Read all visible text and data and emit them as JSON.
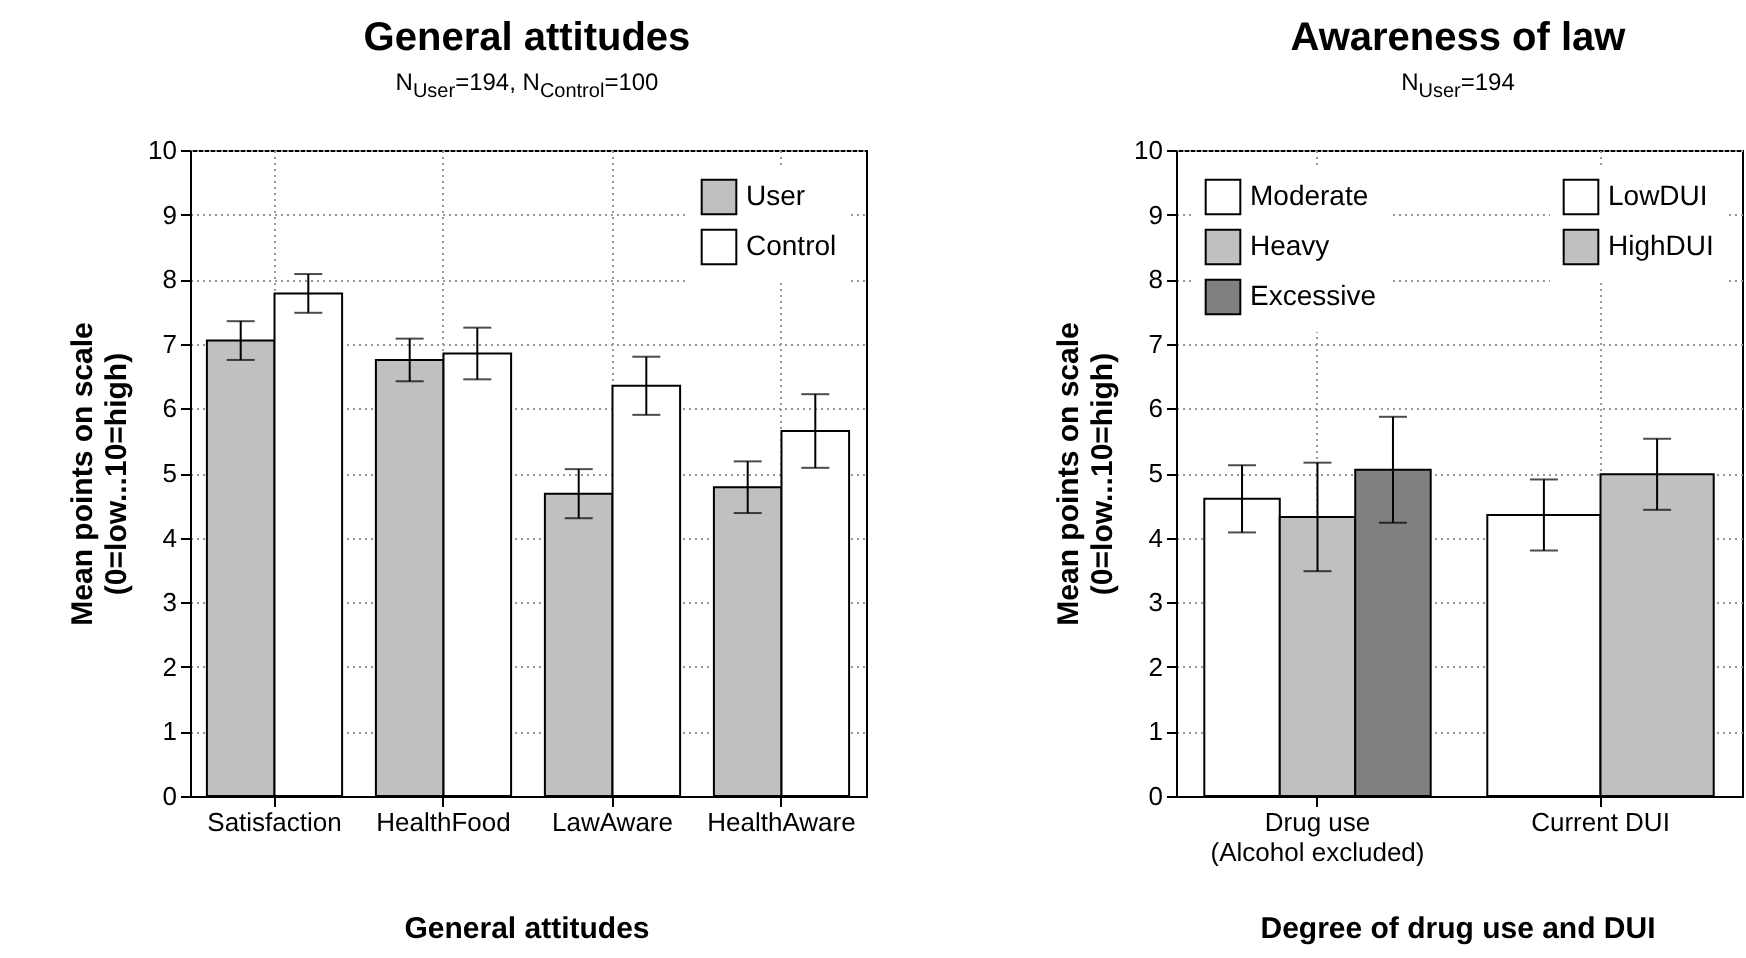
{
  "chart_data": [
    {
      "type": "bar",
      "title": "General attitudes",
      "subtitle": "N$_{User}$=194, N$_{Control}$=100",
      "xlabel": "General attitudes",
      "ylabel": "Mean points on scale\n(0=low...10=high)",
      "categories": [
        "Satisfaction",
        "HealthFood",
        "LawAware",
        "HealthAware"
      ],
      "series": [
        {
          "name": "User",
          "color": "#c0c0c0",
          "values": [
            7.05,
            6.75,
            4.68,
            4.78
          ],
          "errors": [
            0.3,
            0.33,
            0.38,
            0.4
          ]
        },
        {
          "name": "Control",
          "color": "#ffffff",
          "values": [
            7.78,
            6.85,
            6.35,
            5.65
          ],
          "errors": [
            0.3,
            0.4,
            0.45,
            0.57
          ]
        }
      ],
      "ylim": [
        0,
        10
      ],
      "yticks": [
        0,
        1,
        2,
        3,
        4,
        5,
        6,
        7,
        8,
        9,
        10
      ],
      "grid": true,
      "legend": "top right"
    },
    {
      "type": "bar",
      "title": "Awareness of law",
      "subtitle": "N$_{User}$=194",
      "xlabel": "Degree of drug use and DUI",
      "ylabel": "Mean points on scale\n(0=low...10=high)",
      "categories": [
        "Drug use\n(Alcohol excluded)",
        "Current DUI"
      ],
      "series": [
        {
          "name": "Moderate",
          "color": "#ffffff",
          "values": [
            4.6,
            null
          ],
          "errors": [
            0.52,
            null
          ]
        },
        {
          "name": "Heavy",
          "color": "#c0c0c0",
          "values": [
            4.32,
            null
          ],
          "errors": [
            0.84,
            null
          ]
        },
        {
          "name": "Excessive",
          "color": "#808080",
          "values": [
            5.05,
            null
          ],
          "errors": [
            0.82,
            null
          ]
        },
        {
          "name": "LowDUI",
          "color": "#ffffff",
          "values": [
            null,
            4.35
          ],
          "errors": [
            null,
            0.55
          ]
        },
        {
          "name": "HighDUI",
          "color": "#c0c0c0",
          "values": [
            null,
            4.98
          ],
          "errors": [
            null,
            0.55
          ]
        }
      ],
      "ylim": [
        0,
        10
      ],
      "yticks": [
        0,
        1,
        2,
        3,
        4,
        5,
        6,
        7,
        8,
        9,
        10
      ],
      "grid": true,
      "legend": "top"
    }
  ]
}
